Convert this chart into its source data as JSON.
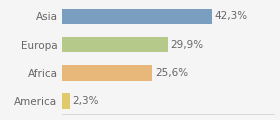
{
  "categories": [
    "America",
    "Africa",
    "Europa",
    "Asia"
  ],
  "values": [
    2.3,
    25.6,
    29.9,
    42.3
  ],
  "labels": [
    "2,3%",
    "25,6%",
    "29,9%",
    "42,3%"
  ],
  "bar_colors": [
    "#e2c96a",
    "#e8b87a",
    "#b5c98a",
    "#7a9ec0"
  ],
  "background_color": "#f5f5f5",
  "xlim": [
    0,
    60
  ],
  "label_fontsize": 7.5,
  "tick_fontsize": 7.5,
  "bar_height": 0.55
}
